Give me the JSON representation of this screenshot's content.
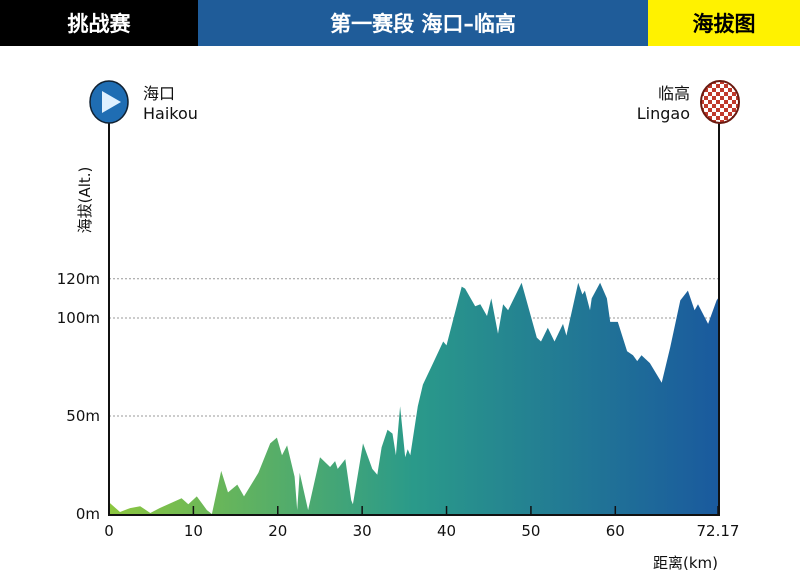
{
  "header": {
    "category": "挑战赛",
    "stage": "第一赛段  海口–临高",
    "type": "海拔图"
  },
  "start": {
    "name_cn": "海口",
    "name_en": "Haikou",
    "icon": "play-icon"
  },
  "finish": {
    "name_cn": "临高",
    "name_en": "Lingao",
    "icon": "checkered-flag-icon"
  },
  "colors": {
    "start": "#8cc63f",
    "mid": "#2a9a8a",
    "end": "#1a5a9e",
    "header_blue": "#1f5c99",
    "header_yellow": "#fff200"
  },
  "chart_data": {
    "type": "area",
    "title": "海拔图",
    "xlabel": "距离(km)",
    "ylabel": "海拔(Alt.)",
    "xlim": [
      0,
      72.17
    ],
    "ylim": [
      0,
      120
    ],
    "x_ticks": [
      "0",
      "10",
      "20",
      "30",
      "40",
      "50",
      "60",
      "72.17"
    ],
    "x_tick_values": [
      0,
      10,
      20,
      30,
      40,
      50,
      60,
      72.17
    ],
    "y_ticks": [
      "0m",
      "50m",
      "100m",
      "120m"
    ],
    "y_tick_values": [
      0,
      50,
      100,
      120
    ],
    "grid": "horizontal dashed",
    "x": [
      0,
      1.3,
      2.5,
      3.7,
      4.9,
      6,
      8.6,
      9.4,
      10.4,
      11.6,
      12.2,
      13.3,
      14.1,
      15.2,
      16,
      17.7,
      19.1,
      19.9,
      20.5,
      21.1,
      22,
      22.3,
      22.6,
      23.6,
      25,
      26.2,
      26.8,
      27.1,
      28,
      28.7,
      28.9,
      30.1,
      31.2,
      31.8,
      32.3,
      33,
      33.6,
      34,
      34.5,
      35.1,
      35.4,
      35.7,
      36.6,
      37.2,
      38.3,
      39.6,
      40,
      41.8,
      42.2,
      43.4,
      44,
      44.8,
      45.3,
      46.1,
      46.7,
      47.3,
      48.9,
      50.7,
      51.2,
      52,
      52.8,
      53.8,
      54.2,
      55.6,
      56.1,
      56.4,
      57,
      57.2,
      58.2,
      59,
      59.4,
      60.3,
      61.4,
      62.1,
      62.6,
      63.1,
      64.1,
      65.5,
      66.5,
      67.7,
      68.6,
      69.4,
      69.8,
      71,
      72,
      72.17
    ],
    "y": [
      6,
      1,
      3,
      4,
      0.5,
      3,
      8,
      5,
      9,
      2,
      0,
      22,
      11,
      15,
      9,
      21,
      36,
      39,
      30,
      35,
      19,
      2,
      21,
      2,
      29,
      24,
      27,
      23,
      28,
      7,
      5,
      36,
      23,
      20,
      34,
      43,
      41,
      30,
      55,
      29,
      33,
      30,
      55,
      66,
      76,
      88,
      86,
      116,
      115,
      106,
      107,
      101,
      110,
      92,
      107,
      104,
      118,
      90,
      88,
      95,
      88,
      97,
      91,
      118,
      112,
      114,
      104,
      110,
      118,
      110,
      98,
      98,
      83,
      81,
      78,
      81,
      77,
      67,
      85,
      109,
      114,
      104,
      107,
      97,
      109,
      110
    ]
  }
}
